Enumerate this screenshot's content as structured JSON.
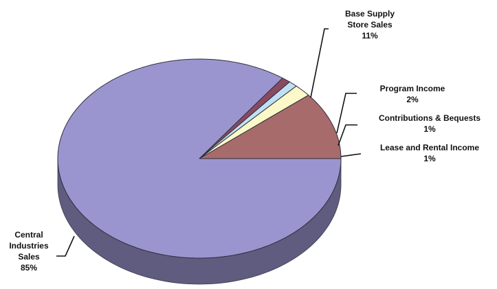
{
  "chart_data": {
    "type": "pie",
    "title": "",
    "slices": [
      {
        "label_lines": [
          "Base Supply",
          "Store Sales"
        ],
        "pct_label": "11%",
        "value": 11,
        "color": "#a86b6b"
      },
      {
        "label_lines": [
          "Program Income"
        ],
        "pct_label": "2%",
        "value": 2,
        "color": "#fbf8c9"
      },
      {
        "label_lines": [
          "Contributions & Bequests"
        ],
        "pct_label": "1%",
        "value": 1,
        "color": "#bfe0f3"
      },
      {
        "label_lines": [
          "Lease and Rental Income"
        ],
        "pct_label": "1%",
        "value": 1,
        "color": "#8a4a62"
      },
      {
        "label_lines": [
          "Central",
          "Industries",
          "Sales"
        ],
        "pct_label": "85%",
        "value": 85,
        "color": "#9a95cf"
      }
    ],
    "start_angle_deg": 0,
    "direction": "counterclockwise",
    "style": "3d-tilted",
    "legend": "none"
  }
}
